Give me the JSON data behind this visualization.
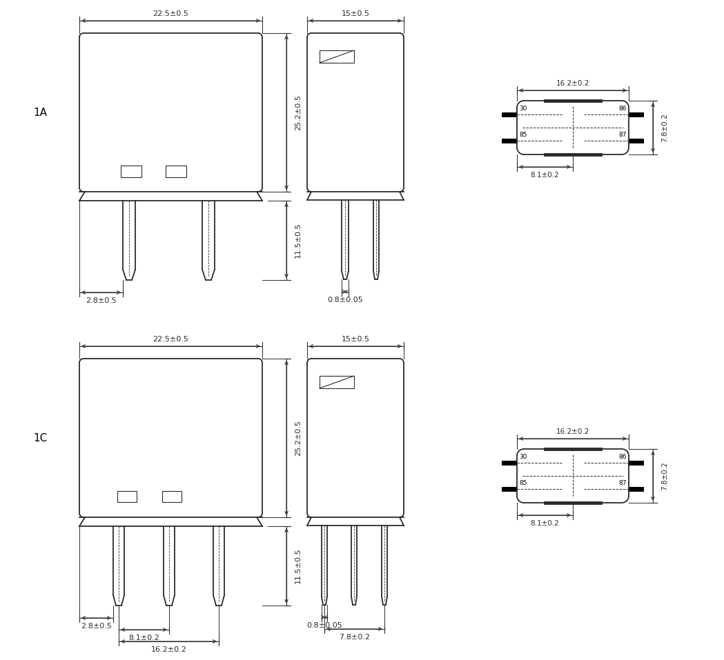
{
  "bg_color": "#ffffff",
  "line_color": "#2a2a2a",
  "lw": 1.3,
  "thin_lw": 0.8,
  "dim_lw": 0.8,
  "dim_color": "#2a2a2a",
  "label_1A": "1A",
  "label_1C": "1C",
  "dim_fontsize": 8.0,
  "label_fontsize": 11,
  "pin_fontsize": 6.5,
  "dim_22_5": "22.5±0.5",
  "dim_25_2": "25.2±0.5",
  "dim_11_5": "11.5±0.5",
  "dim_2_8": "2.8±0.5",
  "dim_15": "15±0.5",
  "dim_0_8": "0.8±0.05",
  "dim_16_2": "16.2±0.2",
  "dim_7_8_v": "7.8±0.2",
  "dim_8_1": "8.1±0.2",
  "dim_8_1b": "8.1±0.2",
  "dim_16_2b": "16.2±0.2",
  "dim_7_8b": "7.8±0.2"
}
